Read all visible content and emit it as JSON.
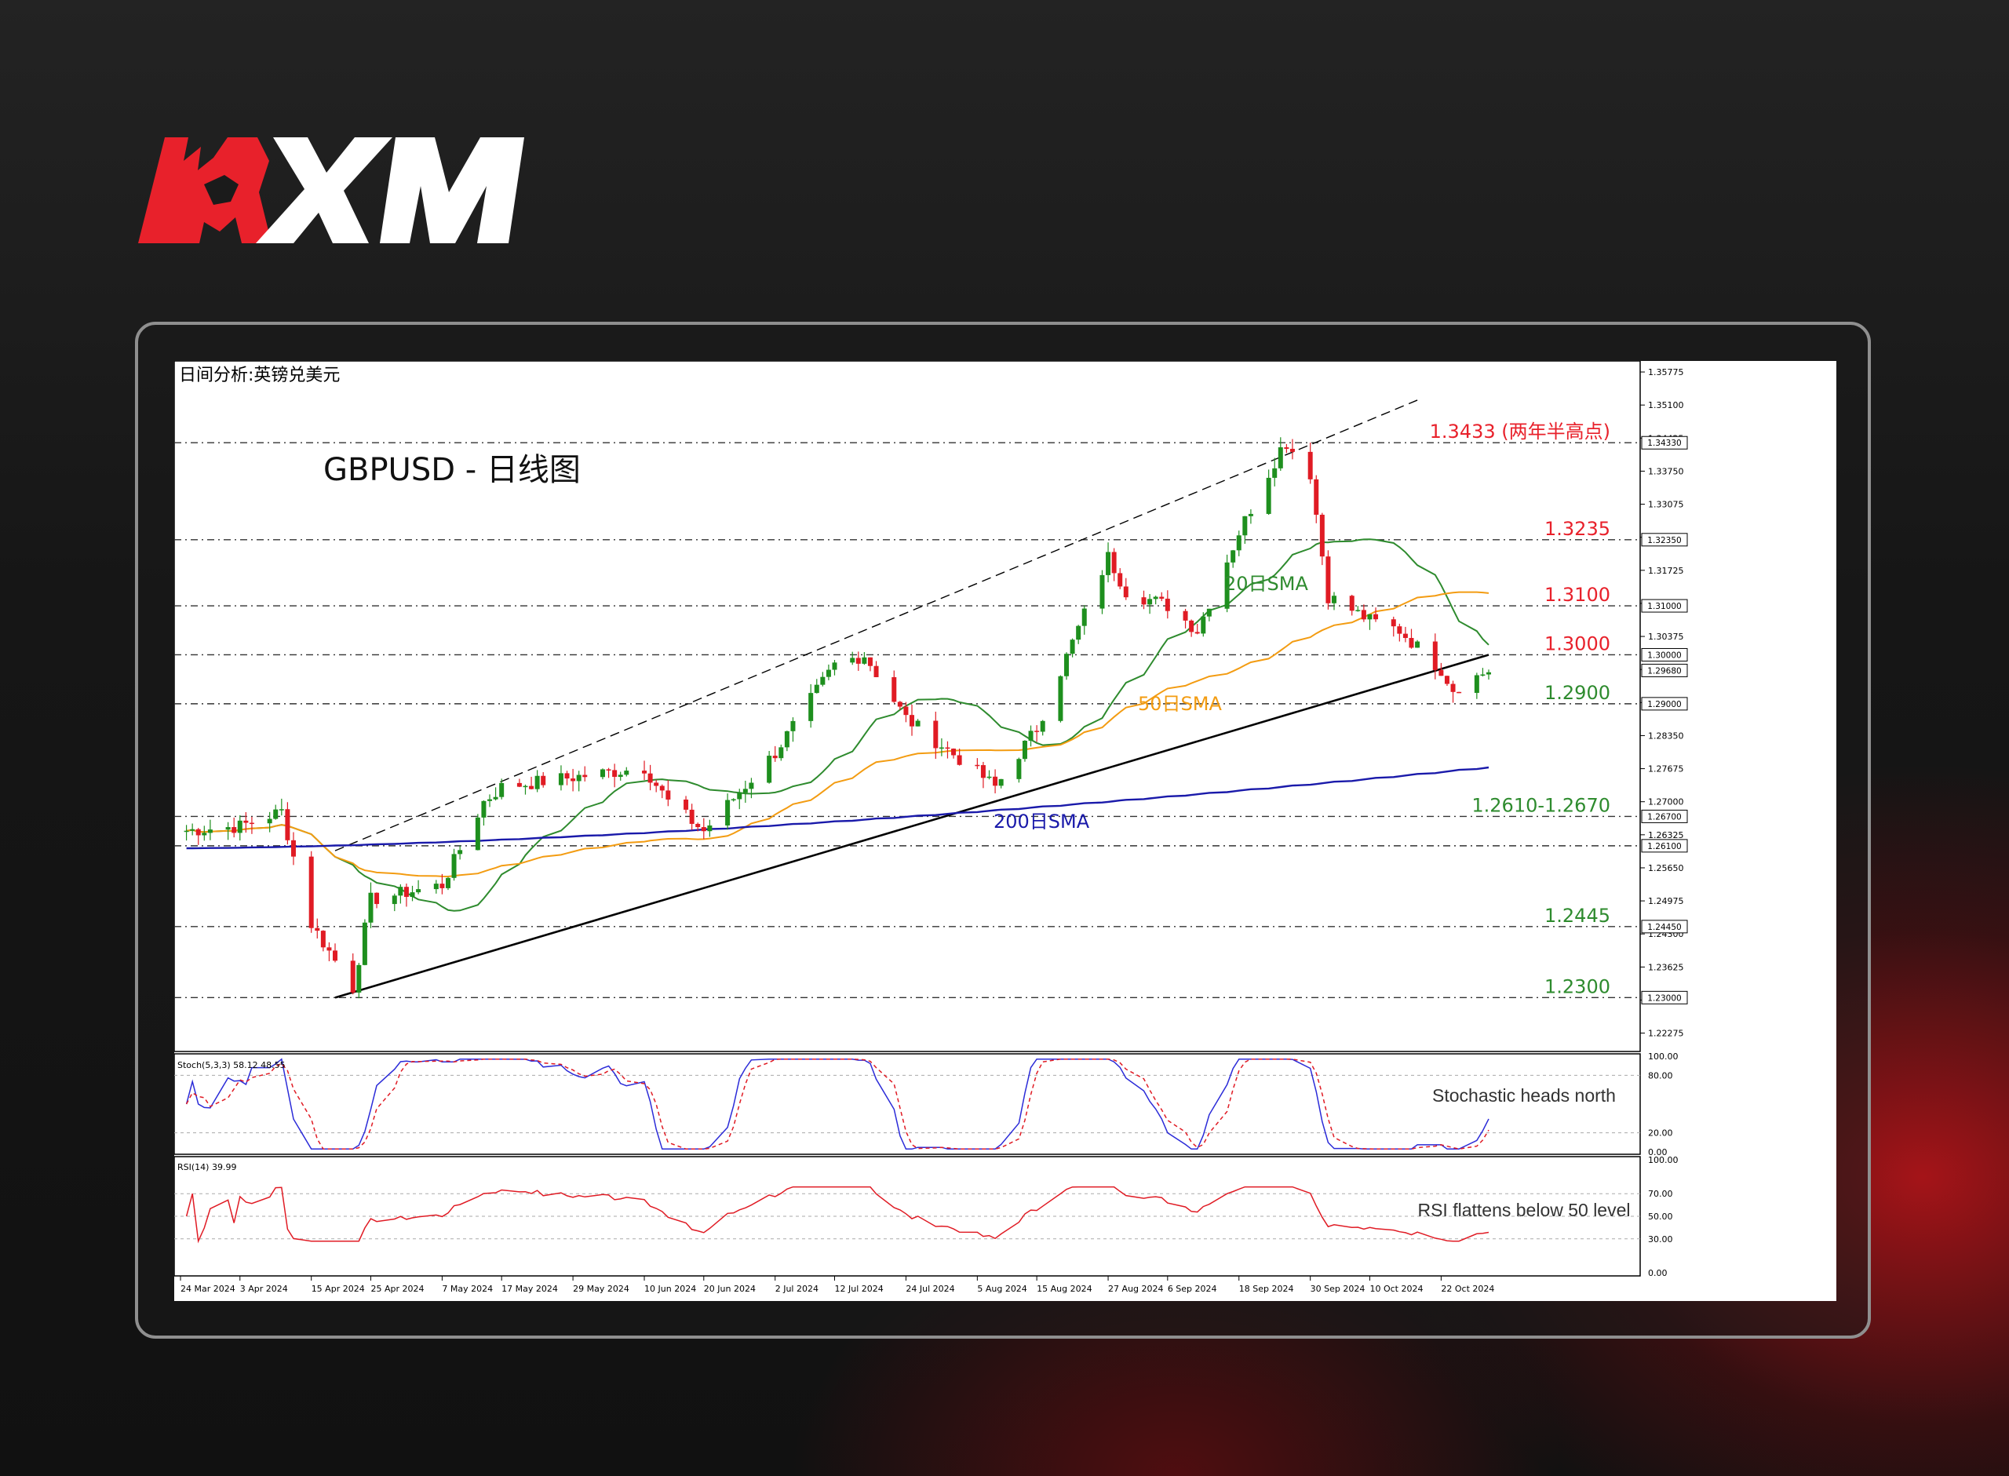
{
  "brand": {
    "name": "XM"
  },
  "chart": {
    "window_title": "日间分析:英镑兑美元",
    "heading": "GBPUSD - 日线图",
    "price_axis_ticks": [
      "1.35775",
      "1.35100",
      "1.34425",
      "1.33750",
      "1.33075",
      "1.32400",
      "1.31725",
      "1.31050",
      "1.30375",
      "1.29700",
      "1.29025",
      "1.28350",
      "1.27675",
      "1.27000",
      "1.26325",
      "1.25650",
      "1.24975",
      "1.24300",
      "1.23625",
      "1.22950",
      "1.22275"
    ],
    "level_labels": [
      {
        "text": "1.3433 (两年半高点)",
        "color": "#e8212b",
        "price": 1.3433,
        "badge": "1.34330"
      },
      {
        "text": "1.3235",
        "color": "#e8212b",
        "price": 1.3235,
        "badge": "1.32350"
      },
      {
        "text": "1.3100",
        "color": "#e8212b",
        "price": 1.31,
        "badge": "1.31000"
      },
      {
        "text": "1.3000",
        "color": "#e8212b",
        "price": 1.3,
        "badge": "1.30000"
      },
      {
        "text": "1.2900",
        "color": "#2e8b2e",
        "price": 1.29,
        "badge": "1.29000"
      },
      {
        "text": "1.2610-1.2670",
        "color": "#2e8b2e",
        "price": 1.267,
        "badge": "1.26700"
      },
      {
        "text": "1.2445",
        "color": "#2e8b2e",
        "price": 1.2445,
        "badge": "1.24450"
      },
      {
        "text": "1.2300",
        "color": "#2e8b2e",
        "price": 1.23,
        "badge": "1.23000"
      }
    ],
    "extra_badges": [
      {
        "price": 1.261,
        "badge": "1.26100"
      },
      {
        "price": 1.2968,
        "badge": "1.29680"
      }
    ],
    "sma_labels": {
      "sma20": "20日SMA",
      "sma50": "50日SMA",
      "sma200": "200日SMA"
    },
    "date_ticks": [
      "24 Mar 2024",
      "3 Apr 2024",
      "15 Apr 2024",
      "25 Apr 2024",
      "7 May 2024",
      "17 May 2024",
      "29 May 2024",
      "10 Jun 2024",
      "20 Jun 2024",
      "2 Jul 2024",
      "12 Jul 2024",
      "24 Jul 2024",
      "5 Aug 2024",
      "15 Aug 2024",
      "27 Aug 2024",
      "6 Sep 2024",
      "18 Sep 2024",
      "30 Sep 2024",
      "10 Oct 2024",
      "22 Oct 2024"
    ],
    "stoch": {
      "label": "Stoch(5,3,3) 58.12 48.55",
      "annotation": "Stochastic heads north",
      "ticks": [
        "100.00",
        "80.00",
        "20.00",
        "0.00"
      ]
    },
    "rsi": {
      "label": "RSI(14) 39.99",
      "annotation": "RSI flattens below 50 level",
      "ticks": [
        "100.00",
        "70.00",
        "50.00",
        "30.00",
        "0.00"
      ]
    },
    "colors": {
      "bull": "#1e8f1e",
      "bear": "#e01b24",
      "sma20": "#2e8b2e",
      "sma50": "#f39c12",
      "sma200": "#1a1aaa",
      "trend": "#000000",
      "stoch_k": "#2b2bd8",
      "stoch_d": "#e01b24",
      "rsi": "#e01b24"
    }
  },
  "chart_data": {
    "type": "candlestick",
    "title": "GBPUSD - 日线图",
    "symbol": "GBPUSD",
    "timeframe": "Daily",
    "x_range": [
      "24 Mar 2024",
      "30 Oct 2024"
    ],
    "ylim": [
      1.219,
      1.36
    ],
    "close_path": [
      {
        "date": "24 Mar 2024",
        "close": 1.264
      },
      {
        "date": "3 Apr 2024",
        "close": 1.265
      },
      {
        "date": "10 Apr 2024",
        "close": 1.268
      },
      {
        "date": "15 Apr 2024",
        "close": 1.245
      },
      {
        "date": "22 Apr 2024",
        "close": 1.232
      },
      {
        "date": "25 Apr 2024",
        "close": 1.25
      },
      {
        "date": "7 May 2024",
        "close": 1.253
      },
      {
        "date": "14 May 2024",
        "close": 1.27
      },
      {
        "date": "17 May 2024",
        "close": 1.273
      },
      {
        "date": "29 May 2024",
        "close": 1.275
      },
      {
        "date": "10 Jun 2024",
        "close": 1.277
      },
      {
        "date": "14 Jun 2024",
        "close": 1.27
      },
      {
        "date": "20 Jun 2024",
        "close": 1.264
      },
      {
        "date": "2 Jul 2024",
        "close": 1.28
      },
      {
        "date": "12 Jul 2024",
        "close": 1.298
      },
      {
        "date": "17 Jul 2024",
        "close": 1.3
      },
      {
        "date": "24 Jul 2024",
        "close": 1.287
      },
      {
        "date": "5 Aug 2024",
        "close": 1.276
      },
      {
        "date": "8 Aug 2024",
        "close": 1.273
      },
      {
        "date": "15 Aug 2024",
        "close": 1.285
      },
      {
        "date": "27 Aug 2024",
        "close": 1.32
      },
      {
        "date": "30 Aug 2024",
        "close": 1.313
      },
      {
        "date": "6 Sep 2024",
        "close": 1.31
      },
      {
        "date": "11 Sep 2024",
        "close": 1.305
      },
      {
        "date": "18 Sep 2024",
        "close": 1.325
      },
      {
        "date": "25 Sep 2024",
        "close": 1.342
      },
      {
        "date": "26 Sep 2024",
        "close": 1.3433
      },
      {
        "date": "30 Sep 2024",
        "close": 1.337
      },
      {
        "date": "3 Oct 2024",
        "close": 1.312
      },
      {
        "date": "10 Oct 2024",
        "close": 1.307
      },
      {
        "date": "15 Oct 2024",
        "close": 1.305
      },
      {
        "date": "22 Oct 2024",
        "close": 1.297
      },
      {
        "date": "24 Oct 2024",
        "close": 1.293
      },
      {
        "date": "30 Oct 2024",
        "close": 1.2968
      }
    ],
    "indicators": {
      "sma20_last": 1.301,
      "sma50_last": 1.311,
      "sma200_last": 1.277,
      "stochastic": {
        "k": 58.12,
        "d": 48.55,
        "levels": [
          80,
          20
        ]
      },
      "rsi14": {
        "value": 39.99,
        "levels": [
          70,
          50,
          30
        ]
      }
    },
    "horizontal_levels": [
      1.3433,
      1.3235,
      1.31,
      1.3,
      1.29,
      1.267,
      1.261,
      1.2445,
      1.23
    ],
    "trendlines": [
      {
        "name": "support",
        "from": {
          "date": "19 Apr 2024",
          "price": 1.23
        },
        "to": {
          "date": "30 Oct 2024",
          "price": 1.3
        }
      },
      {
        "name": "upper channel",
        "from": {
          "date": "19 Apr 2024",
          "price": 1.26
        },
        "to": {
          "date": "18 Oct 2024",
          "price": 1.352
        }
      }
    ]
  }
}
